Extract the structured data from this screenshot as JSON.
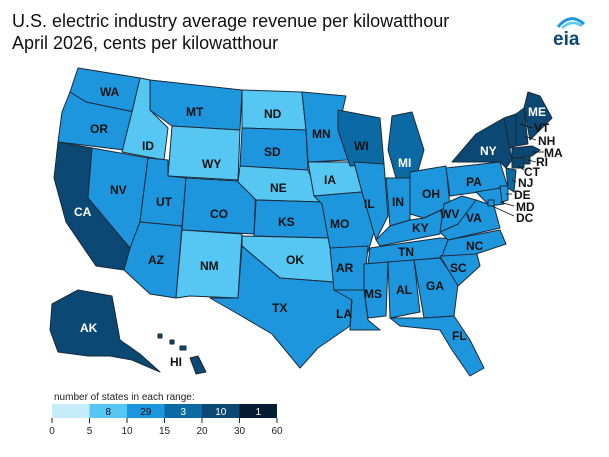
{
  "title_line1": "U.S. electric industry average revenue per kilowatthour",
  "title_line2": "April 2026, cents per kilowatthour",
  "logo_text": "eia",
  "colors": {
    "bin0": "#c6ecfb",
    "bin1": "#56c6f3",
    "bin2": "#1e96de",
    "bin3": "#0b6aa3",
    "bin4": "#0b4873",
    "bin5": "#061c33",
    "border": "#1a2a3a"
  },
  "legend": {
    "title": "number of states in each range:",
    "counts": [
      "",
      "8",
      "29",
      "3",
      "10",
      "1"
    ],
    "breaks": [
      "0",
      "5",
      "10",
      "15",
      "20",
      "30",
      "60"
    ]
  },
  "states": {
    "WA": "WA",
    "OR": "OR",
    "CA": "CA",
    "ID": "ID",
    "NV": "NV",
    "MT": "MT",
    "WY": "WY",
    "UT": "UT",
    "AZ": "AZ",
    "CO": "CO",
    "NM": "NM",
    "ND": "ND",
    "SD": "SD",
    "NE": "NE",
    "KS": "KS",
    "OK": "OK",
    "TX": "TX",
    "MN": "MN",
    "IA": "IA",
    "MO": "MO",
    "AR": "AR",
    "LA": "LA",
    "WI": "WI",
    "IL": "IL",
    "MI": "MI",
    "IN": "IN",
    "OH": "OH",
    "KY": "KY",
    "TN": "TN",
    "MS": "MS",
    "AL": "AL",
    "GA": "GA",
    "FL": "FL",
    "SC": "SC",
    "NC": "NC",
    "VA": "VA",
    "WV": "WV",
    "PA": "PA",
    "NY": "NY",
    "ME": "ME",
    "VT": "VT",
    "NH": "NH",
    "MA": "MA",
    "RI": "RI",
    "CT": "CT",
    "NJ": "NJ",
    "DE": "DE",
    "MD": "MD",
    "DC": "DC",
    "AK": "AK",
    "HI": "HI"
  }
}
